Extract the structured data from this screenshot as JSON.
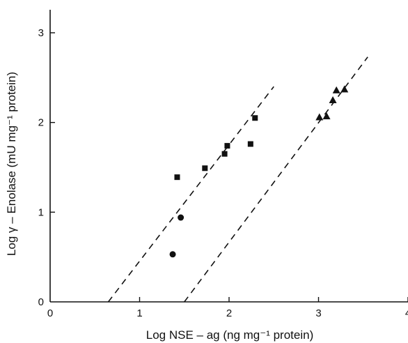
{
  "chart_data": {
    "type": "scatter",
    "xlabel": "Log NSE – ag (ng mg⁻¹ protein)",
    "ylabel": "Log γ – Enolase (mU mg⁻¹ protein)",
    "xlim": [
      0,
      4
    ],
    "ylim": [
      0,
      3
    ],
    "x_ticks": [
      "0",
      "1",
      "2",
      "3",
      "4"
    ],
    "y_ticks": [
      "0",
      "1",
      "2",
      "3"
    ],
    "grid": false,
    "legend": "none",
    "series": [
      {
        "marker": "square",
        "points": [
          [
            1.42,
            1.39
          ],
          [
            1.73,
            1.49
          ],
          [
            1.95,
            1.65
          ],
          [
            1.98,
            1.74
          ],
          [
            2.24,
            1.76
          ],
          [
            2.29,
            2.05
          ]
        ]
      },
      {
        "marker": "circle",
        "points": [
          [
            1.37,
            0.53
          ],
          [
            1.46,
            0.94
          ]
        ]
      },
      {
        "marker": "triangle",
        "points": [
          [
            3.01,
            2.06
          ],
          [
            3.09,
            2.07
          ],
          [
            3.16,
            2.25
          ],
          [
            3.2,
            2.36
          ],
          [
            3.29,
            2.37
          ]
        ]
      }
    ],
    "reference_lines": [
      {
        "style": "dashed",
        "from": [
          0.65,
          0.0
        ],
        "to": [
          2.5,
          2.4
        ]
      },
      {
        "style": "dashed",
        "from": [
          1.5,
          0.0
        ],
        "to": [
          3.55,
          2.73
        ]
      }
    ]
  }
}
